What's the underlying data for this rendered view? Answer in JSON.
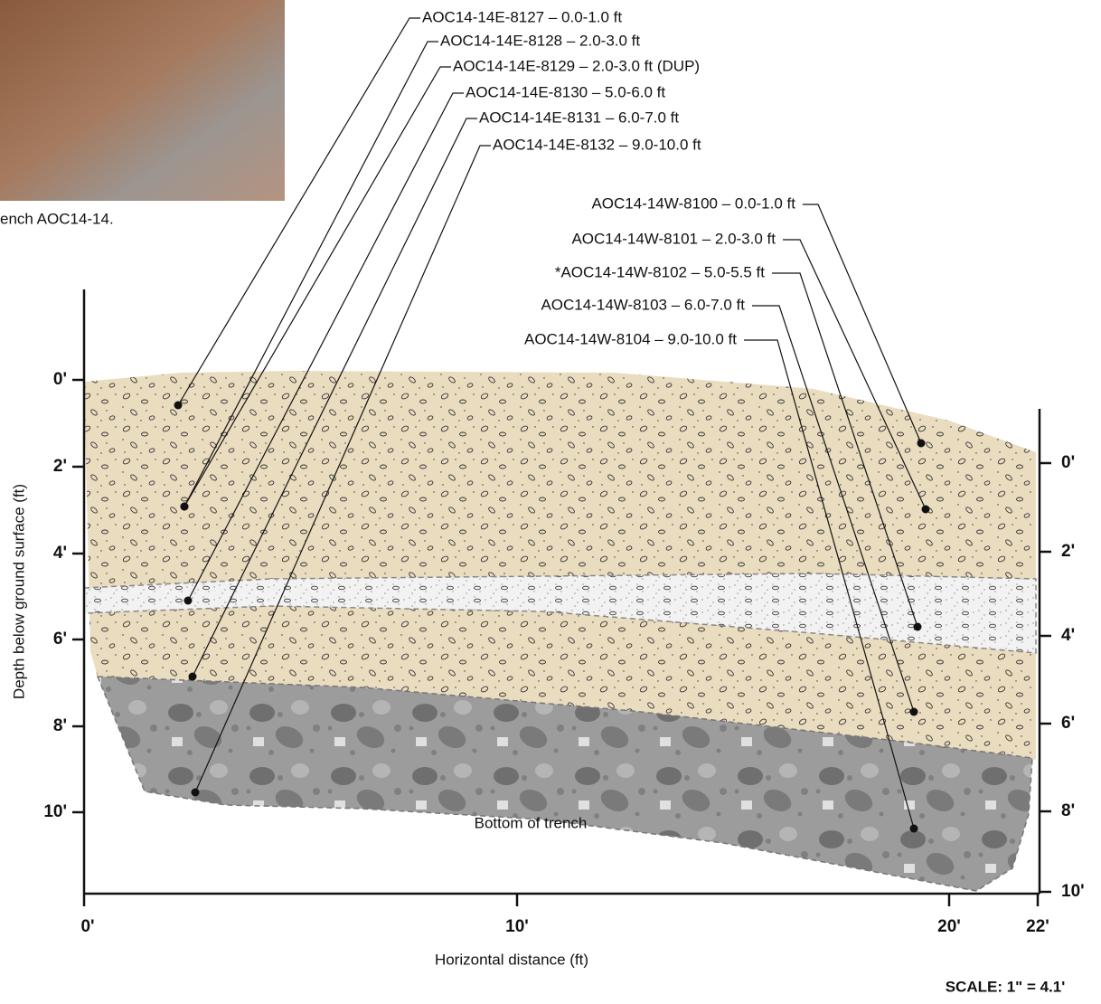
{
  "photo_caption": "ench AOC14-14.",
  "samples_east": [
    {
      "label": "AOC14-14E-8127 – 0.0-1.0 ft"
    },
    {
      "label": "AOC14-14E-8128 – 2.0-3.0 ft"
    },
    {
      "label": "AOC14-14E-8129 – 2.0-3.0 ft (DUP)"
    },
    {
      "label": "AOC14-14E-8130 – 5.0-6.0 ft"
    },
    {
      "label": "AOC14-14E-8131 – 6.0-7.0 ft"
    },
    {
      "label": "AOC14-14E-8132 – 9.0-10.0 ft"
    }
  ],
  "samples_west": [
    {
      "label": "AOC14-14W-8100 – 0.0-1.0 ft"
    },
    {
      "label": "AOC14-14W-8101 – 2.0-3.0 ft"
    },
    {
      "label": "*AOC14-14W-8102 – 5.0-5.5 ft"
    },
    {
      "label": "AOC14-14W-8103 – 6.0-7.0 ft"
    },
    {
      "label": "AOC14-14W-8104 – 9.0-10.0 ft"
    }
  ],
  "left_axis": {
    "title": "Depth below ground surface (ft)",
    "ticks": [
      "0'",
      "2'",
      "4'",
      "6'",
      "8'",
      "10'"
    ]
  },
  "right_axis": {
    "ticks": [
      "0'",
      "2'",
      "4'",
      "6'",
      "8'",
      "10'"
    ]
  },
  "bottom_axis": {
    "title": "Horizontal distance (ft)",
    "ticks": [
      "0'",
      "10'",
      "20'",
      "22'"
    ]
  },
  "annotation": "Bottom of trench",
  "scale": "SCALE: 1\" = 4.1'"
}
